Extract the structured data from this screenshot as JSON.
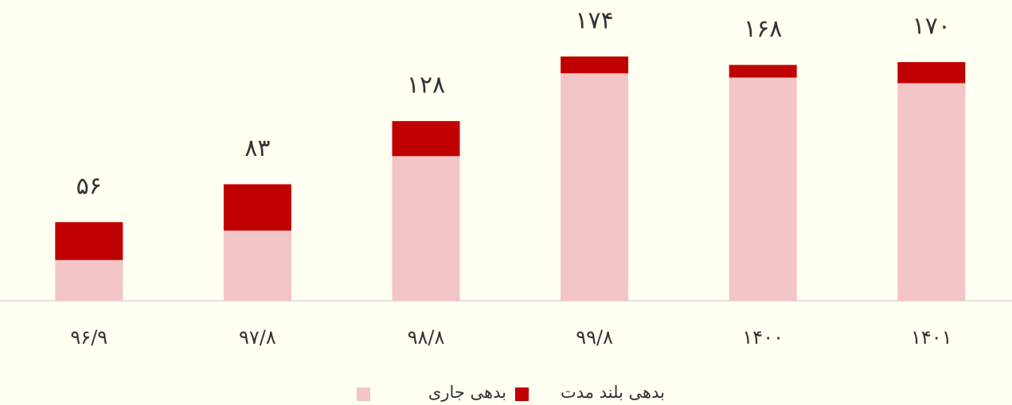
{
  "chart_data": {
    "type": "stacked_bar",
    "categories": [
      "۹۶/۹",
      "۹۷/۸",
      "۹۸/۸",
      "۹۹/۸",
      "۱۴۰۰",
      "۱۴۰۱"
    ],
    "series": [
      {
        "name": "بدهی جاری",
        "color": "#f4c5c6",
        "values": [
          29,
          50,
          103,
          162,
          159,
          155
        ]
      },
      {
        "name": "بدهی بلند مدت",
        "color": "#c00000",
        "values": [
          27,
          33,
          25,
          12,
          9,
          15
        ]
      }
    ],
    "totals": [
      56,
      83,
      128,
      174,
      168,
      170
    ],
    "total_labels": [
      "۵۶",
      "۸۳",
      "۱۲۸",
      "۱۷۴",
      "۱۶۸",
      "۱۷۰"
    ]
  }
}
